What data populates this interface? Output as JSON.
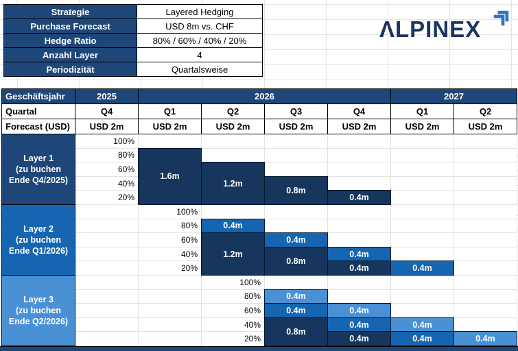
{
  "colors": {
    "navy": "#1e4679",
    "dark": "#16365d",
    "medium": "#1565b0",
    "light": "#4a90d5",
    "logo_navy": "#1c3560",
    "logo_arrow": "#3176be",
    "gridline": "#e2e2e2"
  },
  "info_table": {
    "rows": [
      {
        "label": "Strategie",
        "value": "Layered Hedging"
      },
      {
        "label": "Purchase Forecast",
        "value": "USD 8m vs. CHF"
      },
      {
        "label": "Hedge Ratio",
        "value": "80% / 60% / 40% / 20%"
      },
      {
        "label": "Anzahl Layer",
        "value": "4"
      },
      {
        "label": "Periodizität",
        "value": "Quartalsweise"
      }
    ]
  },
  "logo": {
    "text": "ΛLPINEX",
    "arrow_icon": "double-chevron-up-right"
  },
  "chart": {
    "row_headers": [
      "Geschäftsjahr",
      "Quartal",
      "Forecast (USD)"
    ],
    "years": [
      {
        "label": "2025",
        "span": 1
      },
      {
        "label": "2026",
        "span": 4
      },
      {
        "label": "2027",
        "span": 2
      }
    ],
    "quarters": [
      "Q4",
      "Q1",
      "Q2",
      "Q3",
      "Q4",
      "Q1",
      "Q2"
    ],
    "forecasts": [
      "USD 2m",
      "USD 2m",
      "USD 2m",
      "USD 2m",
      "USD 2m",
      "USD 2m",
      "USD 2m"
    ],
    "pct_labels": [
      "100%",
      "80%",
      "60%",
      "40%",
      "20%"
    ],
    "layers": [
      {
        "lines": [
          "Layer 1",
          "(zu buchen",
          "Ende Q4/2025)"
        ],
        "label_shade": "navy",
        "pct_col": 0,
        "bars": [
          {
            "col": 1,
            "level": 1,
            "span": 4,
            "shade": "dark",
            "value": "1.6m"
          },
          {
            "col": 2,
            "level": 2,
            "span": 3,
            "shade": "dark",
            "value": "1.2m"
          },
          {
            "col": 3,
            "level": 3,
            "span": 2,
            "shade": "dark",
            "value": "0.8m"
          },
          {
            "col": 4,
            "level": 4,
            "span": 1,
            "shade": "dark",
            "value": "0.4m"
          }
        ]
      },
      {
        "lines": [
          "Layer 2",
          "(zu buchen",
          "Ende Q1/2026)"
        ],
        "label_shade": "medium",
        "pct_col": 1,
        "bars": [
          {
            "col": 2,
            "level": 1,
            "span": 1,
            "shade": "medium",
            "value": "0.4m"
          },
          {
            "col": 2,
            "level": 2,
            "span": 3,
            "shade": "dark",
            "value": "1.2m"
          },
          {
            "col": 3,
            "level": 2,
            "span": 1,
            "shade": "medium",
            "value": "0.4m"
          },
          {
            "col": 3,
            "level": 3,
            "span": 2,
            "shade": "dark",
            "value": "0.8m"
          },
          {
            "col": 4,
            "level": 3,
            "span": 1,
            "shade": "medium",
            "value": "0.4m"
          },
          {
            "col": 4,
            "level": 4,
            "span": 1,
            "shade": "dark",
            "value": "0.4m"
          },
          {
            "col": 5,
            "level": 4,
            "span": 1,
            "shade": "medium",
            "value": "0.4m"
          }
        ]
      },
      {
        "lines": [
          "Layer 3",
          "(zu buchen",
          "Ende Q2/2026)"
        ],
        "label_shade": "light",
        "pct_col": 2,
        "bars": [
          {
            "col": 3,
            "level": 1,
            "span": 1,
            "shade": "light",
            "value": "0.4m"
          },
          {
            "col": 3,
            "level": 2,
            "span": 1,
            "shade": "medium",
            "value": "0.4m"
          },
          {
            "col": 3,
            "level": 3,
            "span": 2,
            "shade": "dark",
            "value": "0.8m"
          },
          {
            "col": 4,
            "level": 2,
            "span": 1,
            "shade": "light",
            "value": "0.4m"
          },
          {
            "col": 4,
            "level": 3,
            "span": 1,
            "shade": "medium",
            "value": "0.4m"
          },
          {
            "col": 4,
            "level": 4,
            "span": 1,
            "shade": "dark",
            "value": "0.4m"
          },
          {
            "col": 5,
            "level": 3,
            "span": 1,
            "shade": "light",
            "value": "0.4m"
          },
          {
            "col": 5,
            "level": 4,
            "span": 1,
            "shade": "medium",
            "value": "0.4m"
          },
          {
            "col": 6,
            "level": 4,
            "span": 1,
            "shade": "light",
            "value": "0.4m"
          }
        ]
      }
    ]
  },
  "chart_data": {
    "type": "bar",
    "subtype": "layered-hedging-step-grid",
    "title": "",
    "categories": [
      "Q4 2025",
      "Q1 2026",
      "Q2 2026",
      "Q3 2026",
      "Q4 2026",
      "Q1 2027",
      "Q2 2027"
    ],
    "forecast_usd_m_per_quarter": [
      2,
      2,
      2,
      2,
      2,
      2,
      2
    ],
    "pct_axis": [
      100,
      80,
      60,
      40,
      20
    ],
    "hedge_ratio_schedule_pct": [
      80,
      60,
      40,
      20
    ],
    "legend_position": "none",
    "grid": true,
    "blocks": [
      {
        "name": "Layer 1 (zu buchen Ende Q4/2025)",
        "pct_axis_quarter": "Q4 2025",
        "bars": [
          {
            "quarter": "Q1 2026",
            "hedge_ratio_pct": 80,
            "segments": [
              {
                "layer": 1,
                "value_m": 1.6,
                "label": "1.6m"
              }
            ]
          },
          {
            "quarter": "Q2 2026",
            "hedge_ratio_pct": 60,
            "segments": [
              {
                "layer": 1,
                "value_m": 1.2,
                "label": "1.2m"
              }
            ]
          },
          {
            "quarter": "Q3 2026",
            "hedge_ratio_pct": 40,
            "segments": [
              {
                "layer": 1,
                "value_m": 0.8,
                "label": "0.8m"
              }
            ]
          },
          {
            "quarter": "Q4 2026",
            "hedge_ratio_pct": 20,
            "segments": [
              {
                "layer": 1,
                "value_m": 0.4,
                "label": "0.4m"
              }
            ]
          }
        ]
      },
      {
        "name": "Layer 2 (zu buchen Ende Q1/2026)",
        "pct_axis_quarter": "Q1 2026",
        "bars": [
          {
            "quarter": "Q2 2026",
            "hedge_ratio_pct": 80,
            "segments": [
              {
                "layer": 2,
                "value_m": 0.4,
                "label": "0.4m"
              },
              {
                "layer": 1,
                "value_m": 1.2,
                "label": "1.2m"
              }
            ]
          },
          {
            "quarter": "Q3 2026",
            "hedge_ratio_pct": 60,
            "segments": [
              {
                "layer": 2,
                "value_m": 0.4,
                "label": "0.4m"
              },
              {
                "layer": 1,
                "value_m": 0.8,
                "label": "0.8m"
              }
            ]
          },
          {
            "quarter": "Q4 2026",
            "hedge_ratio_pct": 40,
            "segments": [
              {
                "layer": 2,
                "value_m": 0.4,
                "label": "0.4m"
              },
              {
                "layer": 1,
                "value_m": 0.4,
                "label": "0.4m"
              }
            ]
          },
          {
            "quarter": "Q1 2027",
            "hedge_ratio_pct": 20,
            "segments": [
              {
                "layer": 2,
                "value_m": 0.4,
                "label": "0.4m"
              }
            ]
          }
        ]
      },
      {
        "name": "Layer 3 (zu buchen Ende Q2/2026)",
        "pct_axis_quarter": "Q2 2026",
        "bars": [
          {
            "quarter": "Q3 2026",
            "hedge_ratio_pct": 80,
            "segments": [
              {
                "layer": 3,
                "value_m": 0.4,
                "label": "0.4m"
              },
              {
                "layer": 2,
                "value_m": 0.4,
                "label": "0.4m"
              },
              {
                "layer": 1,
                "value_m": 0.8,
                "label": "0.8m"
              }
            ]
          },
          {
            "quarter": "Q4 2026",
            "hedge_ratio_pct": 60,
            "segments": [
              {
                "layer": 3,
                "value_m": 0.4,
                "label": "0.4m"
              },
              {
                "layer": 2,
                "value_m": 0.4,
                "label": "0.4m"
              },
              {
                "layer": 1,
                "value_m": 0.4,
                "label": "0.4m"
              }
            ]
          },
          {
            "quarter": "Q1 2027",
            "hedge_ratio_pct": 40,
            "segments": [
              {
                "layer": 3,
                "value_m": 0.4,
                "label": "0.4m"
              },
              {
                "layer": 2,
                "value_m": 0.4,
                "label": "0.4m"
              }
            ]
          },
          {
            "quarter": "Q2 2027",
            "hedge_ratio_pct": 20,
            "segments": [
              {
                "layer": 3,
                "value_m": 0.4,
                "label": "0.4m"
              }
            ]
          }
        ]
      }
    ]
  }
}
